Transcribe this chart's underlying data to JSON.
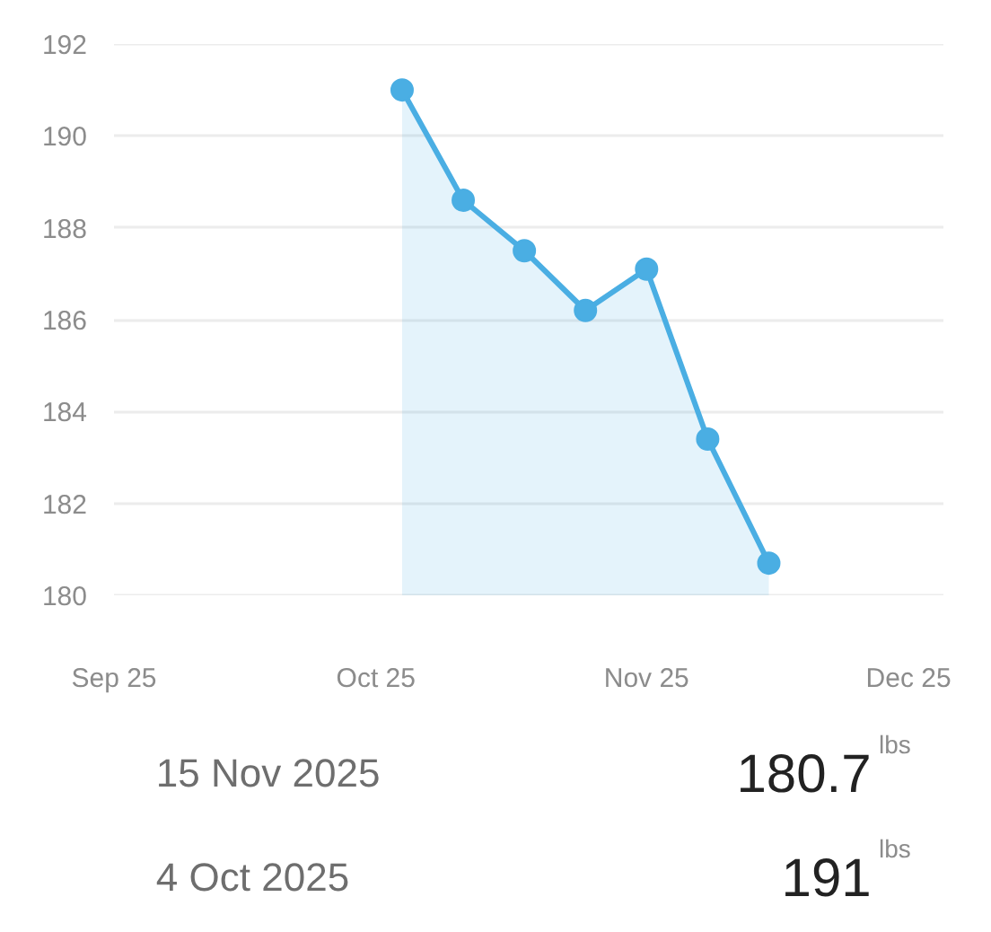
{
  "chart_data": {
    "type": "area",
    "x": [
      "2025-10-04",
      "2025-10-11",
      "2025-10-18",
      "2025-10-25",
      "2025-11-01",
      "2025-11-08",
      "2025-11-15"
    ],
    "values": [
      191,
      188.6,
      187.5,
      186.2,
      187.1,
      183.4,
      180.7
    ],
    "color": "#4aaee3",
    "marker": "circle",
    "grid": "y",
    "xlim": [
      "2025-09-01",
      "2025-12-05"
    ],
    "xticks": [
      {
        "value": "2025-09",
        "label": "Sep 25"
      },
      {
        "value": "2025-10",
        "label": "Oct 25"
      },
      {
        "value": "2025-11",
        "label": "Nov 25"
      },
      {
        "value": "2025-12",
        "label": "Dec 25"
      }
    ],
    "ylim": [
      180,
      192
    ],
    "yticks": [
      180,
      182,
      184,
      186,
      188,
      190,
      192
    ],
    "annotations": [
      "15 Nov 2025",
      "180.7$^{lbs}$",
      "4 Oct 2025",
      "191$^{lbs}$"
    ]
  }
}
